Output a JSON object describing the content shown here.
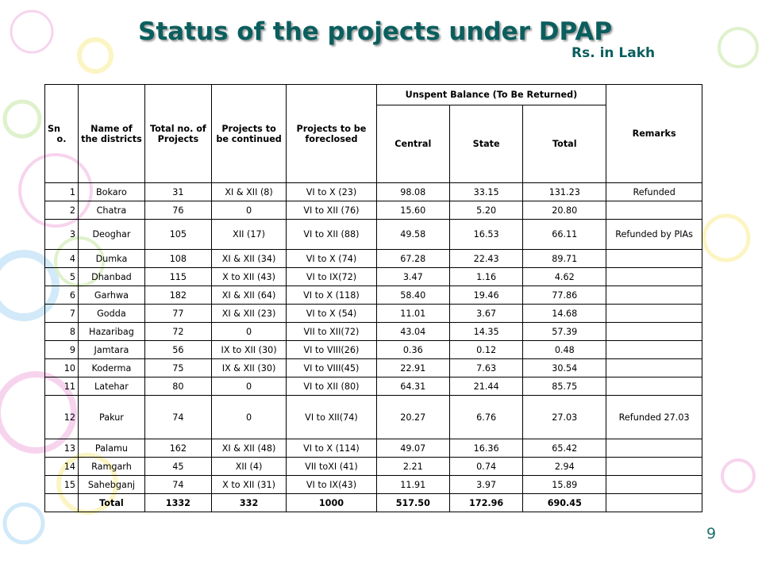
{
  "title": "Status of the projects under DPAP",
  "unit": "Rs. in Lakh",
  "page_number": "9",
  "table": {
    "headers": {
      "sno_top": "Sn",
      "sno_bottom": "o.",
      "name": "Name of the districts",
      "total_projects": "Total no. of Projects",
      "continued": "Projects to be continued",
      "foreclosed": "Projects to be foreclosed",
      "unspent": "Unspent Balance (To Be Returned)",
      "central": "Central",
      "state": "State",
      "total": "Total",
      "remarks": "Remarks"
    },
    "rows": [
      {
        "sno": "1",
        "district": "Bokaro",
        "total_projects": "31",
        "continued": "XI & XII (8)",
        "foreclosed": "VI to X (23)",
        "central": "98.08",
        "state": "33.15",
        "total": "131.23",
        "remarks": "Refunded"
      },
      {
        "sno": "2",
        "district": "Chatra",
        "total_projects": "76",
        "continued": "0",
        "foreclosed": "VI to XII (76)",
        "central": "15.60",
        "state": "5.20",
        "total": "20.80",
        "remarks": ""
      },
      {
        "sno": "3",
        "district": "Deoghar",
        "total_projects": "105",
        "continued": "XII (17)",
        "foreclosed": "VI to XII (88)",
        "central": "49.58",
        "state": "16.53",
        "total": "66.11",
        "remarks": "Refunded by PIAs"
      },
      {
        "sno": "4",
        "district": "Dumka",
        "total_projects": "108",
        "continued": "XI & XII (34)",
        "foreclosed": "VI to X (74)",
        "central": "67.28",
        "state": "22.43",
        "total": "89.71",
        "remarks": ""
      },
      {
        "sno": "5",
        "district": "Dhanbad",
        "total_projects": "115",
        "continued": "X to XII (43)",
        "foreclosed": "VI to IX(72)",
        "central": "3.47",
        "state": "1.16",
        "total": "4.62",
        "remarks": ""
      },
      {
        "sno": "6",
        "district": "Garhwa",
        "total_projects": "182",
        "continued": "XI & XII (64)",
        "foreclosed": "VI to X (118)",
        "central": "58.40",
        "state": "19.46",
        "total": "77.86",
        "remarks": ""
      },
      {
        "sno": "7",
        "district": "Godda",
        "total_projects": "77",
        "continued": "XI & XII (23)",
        "foreclosed": "VI to X (54)",
        "central": "11.01",
        "state": "3.67",
        "total": "14.68",
        "remarks": ""
      },
      {
        "sno": "8",
        "district": "Hazaribag",
        "total_projects": "72",
        "continued": "0",
        "foreclosed": "VII to XII(72)",
        "central": "43.04",
        "state": "14.35",
        "total": "57.39",
        "remarks": ""
      },
      {
        "sno": "9",
        "district": "Jamtara",
        "total_projects": "56",
        "continued": "IX to XII (30)",
        "foreclosed": "VI to VIII(26)",
        "central": "0.36",
        "state": "0.12",
        "total": "0.48",
        "remarks": ""
      },
      {
        "sno": "10",
        "district": "Koderma",
        "total_projects": "75",
        "continued": "IX & XII (30)",
        "foreclosed": "VI to VIII(45)",
        "central": "22.91",
        "state": "7.63",
        "total": "30.54",
        "remarks": ""
      },
      {
        "sno": "11",
        "district": "Latehar",
        "total_projects": "80",
        "continued": "0",
        "foreclosed": "VI to XII (80)",
        "central": "64.31",
        "state": "21.44",
        "total": "85.75",
        "remarks": ""
      },
      {
        "sno": "12",
        "district": "Pakur",
        "total_projects": "74",
        "continued": "0",
        "foreclosed": "VI to XII(74)",
        "central": "20.27",
        "state": "6.76",
        "total": "27.03",
        "remarks": "Refunded 27.03"
      },
      {
        "sno": "13",
        "district": "Palamu",
        "total_projects": "162",
        "continued": "XI & XII (48)",
        "foreclosed": "VI to X (114)",
        "central": "49.07",
        "state": "16.36",
        "total": "65.42",
        "remarks": ""
      },
      {
        "sno": "14",
        "district": "Ramgarh",
        "total_projects": "45",
        "continued": "XII (4)",
        "foreclosed": "VII toXI (41)",
        "central": "2.21",
        "state": "0.74",
        "total": "2.94",
        "remarks": ""
      },
      {
        "sno": "15",
        "district": "Sahebganj",
        "total_projects": "74",
        "continued": "X to XII (31)",
        "foreclosed": "VI to IX(43)",
        "central": "11.91",
        "state": "3.97",
        "total": "15.89",
        "remarks": ""
      }
    ],
    "total_row": {
      "label": "Total",
      "total_projects": "1332",
      "continued": "332",
      "foreclosed": "1000",
      "central": "517.50",
      "state": "172.96",
      "total": "690.45",
      "remarks": ""
    }
  },
  "colors": {
    "title": "#0b5e5e",
    "decoration_blue": "#c9e6f7",
    "decoration_yellow": "#fbf3b9",
    "decoration_pink": "#f6cdea",
    "decoration_green": "#d9efc2"
  }
}
